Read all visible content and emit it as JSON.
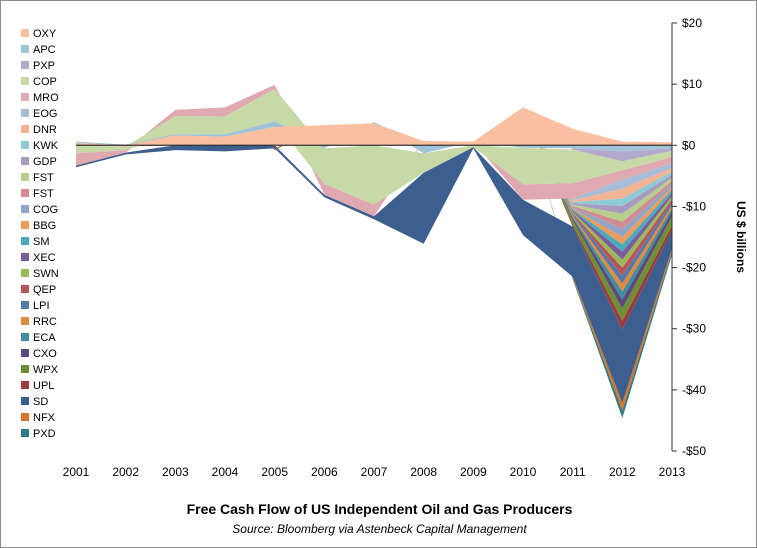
{
  "chart_data": {
    "type": "area",
    "title": "Free Cash Flow of US Independent Oil and Gas Producers",
    "subtitle": "Source: Bloomberg via Astenbeck Capital Management",
    "ylabel": "US $ billions",
    "xlabel": "",
    "x": [
      2001,
      2002,
      2003,
      2004,
      2005,
      2006,
      2007,
      2008,
      2009,
      2010,
      2011,
      2012,
      2013
    ],
    "ylim": [
      -50,
      20
    ],
    "yticks": [
      20,
      10,
      0,
      -10,
      -20,
      -30,
      -40,
      -50
    ],
    "ytick_labels": [
      "$20",
      "$10",
      "$0",
      "-$10",
      "-$20",
      "-$30",
      "-$40",
      "-$50"
    ],
    "legend_position": "left",
    "grid": false,
    "series": [
      {
        "name": "OXY",
        "color": "#f9bfa0",
        "values": [
          0.4,
          -0.2,
          1.6,
          1.4,
          3.0,
          3.3,
          3.6,
          0.7,
          0.6,
          6.2,
          2.7,
          0.6,
          0.5
        ]
      },
      {
        "name": "APC",
        "color": "#9fc3d8",
        "values": [
          0.2,
          0.1,
          0.2,
          0.4,
          0.9,
          -0.5,
          0.2,
          -1.3,
          0.0,
          -0.4,
          -0.5,
          -1.0,
          -0.5
        ]
      },
      {
        "name": "PXP",
        "color": "#b2a9cc",
        "values": [
          0.0,
          0.0,
          0.0,
          0.0,
          0.0,
          0.0,
          0.0,
          0.0,
          0.0,
          0.0,
          -0.2,
          -1.6,
          -0.4
        ]
      },
      {
        "name": "COP",
        "color": "#c8d9a8",
        "values": [
          -1.3,
          -0.6,
          3.0,
          2.9,
          5.3,
          -5.8,
          -9.7,
          -3.2,
          -0.3,
          -6.0,
          -5.5,
          -1.5,
          -1.0
        ]
      },
      {
        "name": "MRO",
        "color": "#e0a8b0",
        "values": [
          -2.0,
          -0.4,
          1.0,
          1.5,
          0.7,
          -1.8,
          -1.9,
          0.0,
          0.0,
          -2.5,
          -2.5,
          -1.5,
          -1.0
        ]
      },
      {
        "name": "EOG",
        "color": "#a8bcd6",
        "values": [
          0.0,
          0.0,
          0.0,
          0.0,
          0.0,
          0.0,
          0.0,
          0.0,
          0.0,
          0.0,
          -0.3,
          -1.5,
          -0.8
        ]
      },
      {
        "name": "DNR",
        "color": "#f3b494",
        "values": [
          0.0,
          0.0,
          0.0,
          0.0,
          0.0,
          0.0,
          0.0,
          0.0,
          0.0,
          0.0,
          -0.3,
          -1.6,
          -0.6
        ]
      },
      {
        "name": "KWK",
        "color": "#8ccad6",
        "values": [
          0.0,
          0.0,
          0.0,
          0.0,
          0.0,
          0.0,
          0.0,
          0.0,
          0.0,
          0.0,
          -0.2,
          -1.2,
          -0.5
        ]
      },
      {
        "name": "GDP",
        "color": "#a99ac2",
        "values": [
          0.0,
          0.0,
          0.0,
          0.0,
          0.0,
          0.0,
          0.0,
          0.0,
          0.0,
          0.0,
          -0.2,
          -1.3,
          -0.5
        ]
      },
      {
        "name": "FST",
        "color": "#b8cf8c",
        "values": [
          0.0,
          0.0,
          0.0,
          0.0,
          0.0,
          0.0,
          0.0,
          0.0,
          0.0,
          0.0,
          -0.2,
          -1.3,
          -0.5
        ]
      },
      {
        "name": "FST",
        "color": "#d08c92",
        "values": [
          0.0,
          0.0,
          0.0,
          0.0,
          0.0,
          0.0,
          0.0,
          0.0,
          0.0,
          0.0,
          -0.2,
          -1.2,
          -0.5
        ]
      },
      {
        "name": "COG",
        "color": "#8ea6c6",
        "values": [
          0.0,
          0.0,
          0.0,
          0.0,
          0.0,
          0.0,
          0.0,
          0.0,
          0.0,
          0.0,
          -0.2,
          -1.3,
          -0.5
        ]
      },
      {
        "name": "BBG",
        "color": "#ee9a58",
        "values": [
          0.0,
          0.0,
          0.0,
          0.0,
          0.0,
          0.0,
          0.0,
          0.0,
          0.0,
          0.0,
          -0.2,
          -1.2,
          -0.5
        ]
      },
      {
        "name": "SM",
        "color": "#4aaabf",
        "values": [
          0.0,
          0.0,
          0.0,
          0.0,
          0.0,
          0.0,
          0.0,
          0.0,
          0.0,
          0.0,
          -0.2,
          -1.2,
          -0.5
        ]
      },
      {
        "name": "XEC",
        "color": "#7a5d99",
        "values": [
          0.0,
          0.0,
          0.0,
          0.0,
          0.0,
          0.0,
          0.0,
          0.0,
          0.0,
          0.0,
          -0.2,
          -1.3,
          -0.5
        ]
      },
      {
        "name": "SWN",
        "color": "#9aba5a",
        "values": [
          0.0,
          0.0,
          0.0,
          0.0,
          0.0,
          0.0,
          0.0,
          0.0,
          0.0,
          0.0,
          -0.2,
          -1.3,
          -0.5
        ]
      },
      {
        "name": "QEP",
        "color": "#b85558",
        "values": [
          0.0,
          0.0,
          0.0,
          0.0,
          0.0,
          0.0,
          0.0,
          0.0,
          0.0,
          0.0,
          -0.2,
          -1.3,
          -0.5
        ]
      },
      {
        "name": "LPI",
        "color": "#5578ad",
        "values": [
          0.0,
          0.0,
          0.0,
          0.0,
          0.0,
          0.0,
          0.0,
          0.0,
          0.0,
          0.0,
          -0.2,
          -1.3,
          -0.5
        ]
      },
      {
        "name": "RRC",
        "color": "#e08a3c",
        "values": [
          0.0,
          0.0,
          0.0,
          0.0,
          0.0,
          0.0,
          0.0,
          0.0,
          0.0,
          0.0,
          -0.2,
          -1.3,
          -0.5
        ]
      },
      {
        "name": "ECA",
        "color": "#3f8fa0",
        "values": [
          0.0,
          0.0,
          0.0,
          0.0,
          0.0,
          0.0,
          0.0,
          0.0,
          0.0,
          0.0,
          -0.2,
          -1.3,
          -0.5
        ]
      },
      {
        "name": "CXO",
        "color": "#5c4a7e",
        "values": [
          0.0,
          0.0,
          0.0,
          0.0,
          0.0,
          0.0,
          0.0,
          0.0,
          0.0,
          0.0,
          -0.3,
          -1.5,
          -0.8
        ]
      },
      {
        "name": "WPX",
        "color": "#6f8f34",
        "values": [
          0.0,
          0.0,
          0.0,
          0.0,
          0.0,
          0.0,
          0.0,
          0.0,
          0.0,
          0.0,
          -0.8,
          -2.0,
          -1.5
        ]
      },
      {
        "name": "UPL",
        "color": "#9c3a3c",
        "values": [
          0.0,
          0.0,
          0.0,
          0.0,
          0.0,
          0.0,
          0.0,
          0.0,
          0.0,
          0.0,
          -0.3,
          -1.4,
          -0.8
        ]
      },
      {
        "name": "SD",
        "color": "#3d5f8f",
        "values": [
          -0.3,
          -0.3,
          -0.8,
          -1.0,
          -0.5,
          -0.4,
          -0.5,
          -11.6,
          -0.2,
          -5.8,
          -8.2,
          -12.0,
          -3.0
        ]
      },
      {
        "name": "NFX",
        "color": "#d7762a",
        "values": [
          0.0,
          0.0,
          0.0,
          0.0,
          -0.3,
          0.0,
          0.0,
          0.0,
          0.0,
          0.0,
          -0.2,
          -1.3,
          -0.5
        ]
      },
      {
        "name": "PXD",
        "color": "#2e7c86",
        "values": [
          0.0,
          0.0,
          0.0,
          0.0,
          0.0,
          0.0,
          0.0,
          0.0,
          0.0,
          0.0,
          -0.2,
          -1.2,
          -0.5
        ]
      }
    ]
  }
}
